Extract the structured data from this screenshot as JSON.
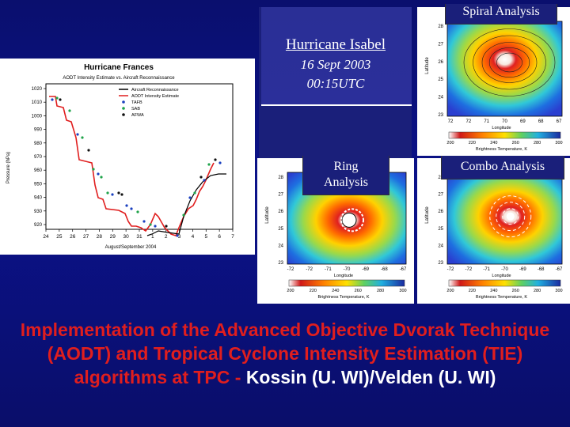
{
  "frances_chart": {
    "title": "Hurricane Frances",
    "subtitle": "AODT Intensity Estimate vs. Aircraft Reconnaissance",
    "ylabel": "Pressure (hPa)",
    "xlabel": "August/September 2004",
    "yticks": [
      "1020",
      "1010",
      "1000",
      "990",
      "980",
      "970",
      "960",
      "950",
      "940",
      "930",
      "920"
    ],
    "xticks": [
      "24",
      "25",
      "26",
      "27",
      "28",
      "29",
      "30",
      "31",
      "1",
      "2",
      "3",
      "4",
      "5",
      "6",
      "7"
    ],
    "legend": [
      "Aircraft Reconnaissance",
      "AODT Intensity Estimate",
      "TAFB",
      "SAB",
      "AFWA"
    ],
    "colors": {
      "recon": "#000000",
      "aodt": "#e01e1e",
      "tafb": "#1a3fbf",
      "sab": "#1fa34a",
      "afwa": "#111111"
    }
  },
  "center_label": {
    "title": "Hurricane Isabel",
    "date": "16 Sept 2003",
    "time": "00:15UTC"
  },
  "panels": {
    "spiral": "Spiral Analysis",
    "ring_line1": "Ring",
    "ring_line2": "Analysis",
    "combo": "Combo Analysis"
  },
  "sat_axis": {
    "latitude": "Latitude",
    "longitude": "Longitude",
    "brightness": "Brightness Temperature, K",
    "top_lat_ticks": [
      "28",
      "27",
      "26",
      "25",
      "24",
      "23"
    ],
    "top_lon_ticks": [
      "72",
      "72",
      "71",
      "70",
      "69",
      "68",
      "67"
    ],
    "bot_lat_ticks": [
      "28",
      "27",
      "26",
      "25",
      "24",
      "23"
    ],
    "bot_lon_ticks": [
      "-72",
      "-72",
      "-71",
      "-70",
      "-69",
      "-68",
      "-67"
    ],
    "cbar_ticks": [
      "200",
      "220",
      "240",
      "260",
      "280",
      "300"
    ]
  },
  "bottom": {
    "red": "Implementation of the Advanced Objective Dvorak Technique (AODT) and Tropical Cyclone Intensity Estimation (TIE) algorithms at TPC - ",
    "white": "Kossin (U. WI)/Velden (U. WI)"
  }
}
